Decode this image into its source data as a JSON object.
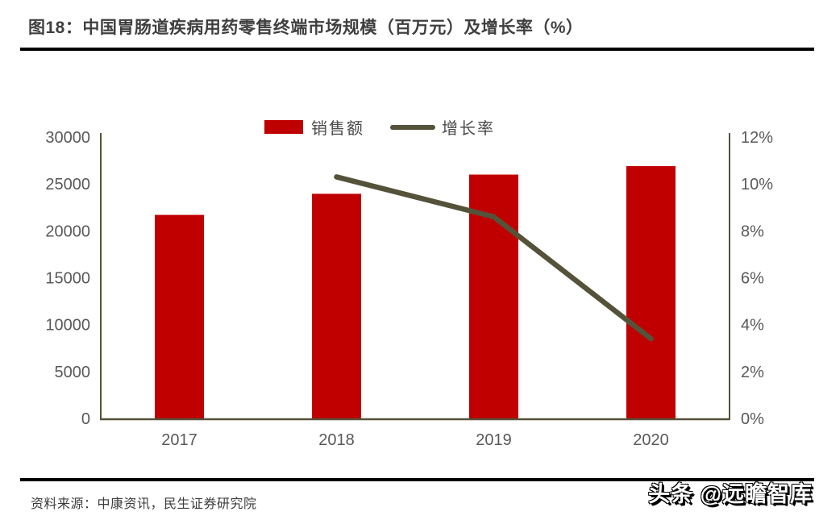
{
  "page": {
    "title": "图18：中国胃肠道疾病用药零售终端市场规模（百万元）及增长率（%）",
    "source_note": "资料来源：中康资讯，民生证券研究院",
    "watermark": "头条 @远瞻智库"
  },
  "colors": {
    "bar": "#c00000",
    "line": "#55523a",
    "axis": "#55523a",
    "tick_text": "#595959",
    "title_text": "#3f3f3f",
    "rule": "#000000"
  },
  "chart_data": {
    "type": "combo-bar-line",
    "title": "中国胃肠道疾病用药零售终端市场规模（百万元）及增长率（%）",
    "categories": [
      "2017",
      "2018",
      "2019",
      "2020"
    ],
    "series": [
      {
        "name": "销售额",
        "type": "bar",
        "axis": "left",
        "color": "#c00000",
        "values": [
          21700,
          23950,
          26000,
          26900
        ]
      },
      {
        "name": "增长率",
        "type": "line",
        "axis": "right",
        "color": "#55523a",
        "values": [
          null,
          10.3,
          8.6,
          3.4
        ]
      }
    ],
    "left_axis": {
      "min": 0,
      "max": 30000,
      "step": 5000,
      "tick_labels": [
        "0",
        "5000",
        "10000",
        "15000",
        "20000",
        "25000",
        "30000"
      ]
    },
    "right_axis": {
      "min": 0,
      "max": 12,
      "step": 2,
      "unit": "%",
      "tick_labels": [
        "0%",
        "2%",
        "4%",
        "6%",
        "8%",
        "10%",
        "12%"
      ]
    },
    "legend_position": "top",
    "grid": false
  }
}
